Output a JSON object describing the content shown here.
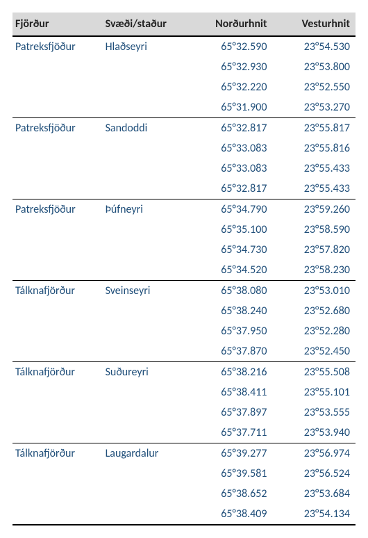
{
  "table": {
    "header_bg": "#d9d9d9",
    "header_text_color": "#222222",
    "body_text_color": "#1f4e79",
    "rule_color": "#000000",
    "fontsize": 16,
    "columns": [
      {
        "key": "fjordur",
        "label": "Fjörður",
        "align": "left"
      },
      {
        "key": "svaedi",
        "label": "Svæði/staður",
        "align": "left"
      },
      {
        "key": "nordurhnit",
        "label": "Norðurhnit",
        "align": "right"
      },
      {
        "key": "vesturhnit",
        "label": "Vesturhnit",
        "align": "right"
      }
    ],
    "groups": [
      {
        "fjordur": "Patreksfjöður",
        "svaedi": "Hlaðseyri",
        "points": [
          {
            "n": "65°32.590",
            "v": "23°54.530"
          },
          {
            "n": "65°32.930",
            "v": "23°53.800"
          },
          {
            "n": "65°32.220",
            "v": "23°52.550"
          },
          {
            "n": "65°31.900",
            "v": "23°53.270"
          }
        ]
      },
      {
        "fjordur": "Patreksfjöður",
        "svaedi": "Sandoddi",
        "points": [
          {
            "n": "65°32.817",
            "v": "23°55.817"
          },
          {
            "n": "65°33.083",
            "v": "23°55.816"
          },
          {
            "n": "65°33.083",
            "v": "23°55.433"
          },
          {
            "n": "65°32.817",
            "v": "23°55.433"
          }
        ]
      },
      {
        "fjordur": "Patreksfjöður",
        "svaedi": "Þúfneyri",
        "points": [
          {
            "n": "65°34.790",
            "v": "23°59.260"
          },
          {
            "n": "65°35.100",
            "v": "23°58.590"
          },
          {
            "n": "65°34.730",
            "v": "23°57.820"
          },
          {
            "n": "65°34.520",
            "v": "23°58.230"
          }
        ]
      },
      {
        "fjordur": "Tálknafjörður",
        "svaedi": "Sveinseyri",
        "points": [
          {
            "n": "65°38.080",
            "v": "23°53.010"
          },
          {
            "n": "65°38.240",
            "v": "23°52.680"
          },
          {
            "n": "65°37.950",
            "v": "23°52.280"
          },
          {
            "n": "65°37.870",
            "v": "23°52.450"
          }
        ]
      },
      {
        "fjordur": "Tálknafjörður",
        "svaedi": "Suðureyri",
        "points": [
          {
            "n": "65°38.216",
            "v": "23°55.508"
          },
          {
            "n": "65°38.411",
            "v": "23°55.101"
          },
          {
            "n": "65°37.897",
            "v": "23°53.555"
          },
          {
            "n": "65°37.711",
            "v": "23°53.940"
          }
        ]
      },
      {
        "fjordur": "Tálknafjörður",
        "svaedi": "Laugardalur",
        "points": [
          {
            "n": "65°39.277",
            "v": "23°56.974"
          },
          {
            "n": "65°39.581",
            "v": "23°56.524"
          },
          {
            "n": "65°38.652",
            "v": "23°53.684"
          },
          {
            "n": "65°38.409",
            "v": "23°54.134"
          }
        ]
      }
    ]
  }
}
